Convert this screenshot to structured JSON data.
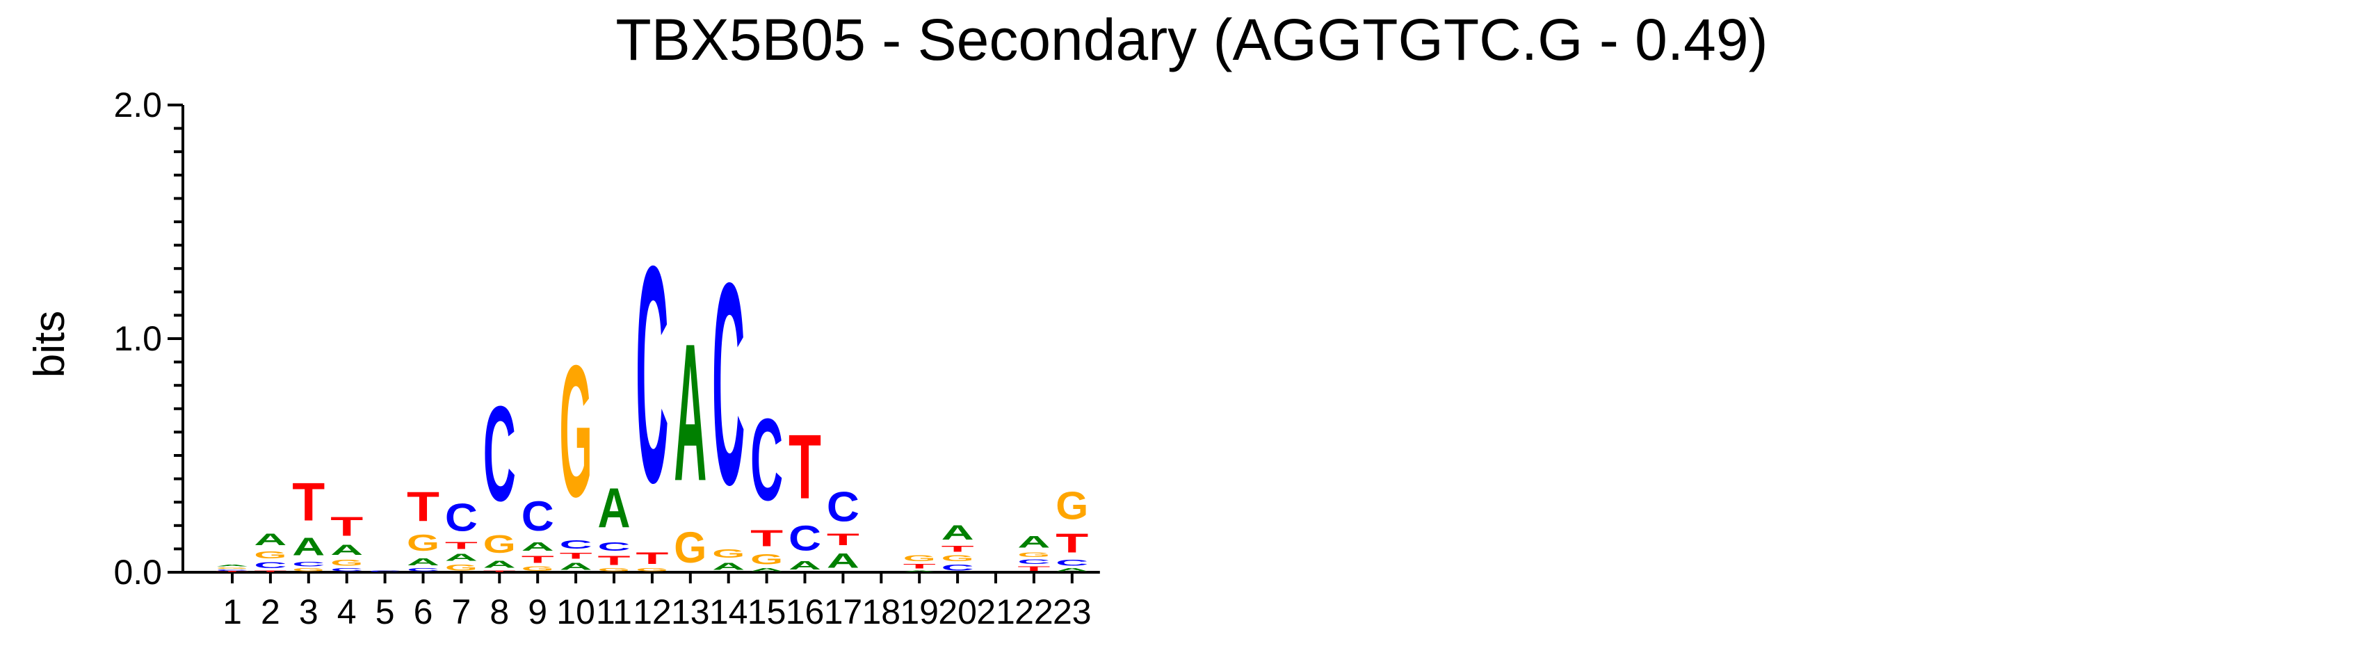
{
  "chart_data": {
    "type": "sequence-logo",
    "title": "TBX5B05 - Secondary (AGGTGTC.G - 0.49)",
    "ylabel": "bits",
    "ylim": [
      0,
      2
    ],
    "yticks": [
      "0.0",
      "1.0",
      "2.0"
    ],
    "positions": [
      "1",
      "2",
      "3",
      "4",
      "5",
      "6",
      "7",
      "8",
      "9",
      "10",
      "11",
      "12",
      "13",
      "14",
      "15",
      "16",
      "17",
      "18",
      "19",
      "20",
      "21",
      "22",
      "23"
    ],
    "colors": {
      "A": "#008000",
      "C": "#0000ff",
      "G": "#ffa500",
      "T": "#ff0000"
    },
    "stacks": [
      [
        [
          "T",
          0.005
        ],
        [
          "C",
          0.008
        ],
        [
          "G",
          0.01
        ],
        [
          "A",
          0.012
        ]
      ],
      [
        [
          "T",
          0.01
        ],
        [
          "C",
          0.04
        ],
        [
          "G",
          0.05
        ],
        [
          "A",
          0.08
        ]
      ],
      [
        [
          "G",
          0.02
        ],
        [
          "C",
          0.03
        ],
        [
          "A",
          0.12
        ],
        [
          "T",
          0.26
        ]
      ],
      [
        [
          "C",
          0.02
        ],
        [
          "G",
          0.04
        ],
        [
          "A",
          0.07
        ],
        [
          "T",
          0.13
        ]
      ],
      [
        [
          "C",
          0.01
        ]
      ],
      [
        [
          "C",
          0.02
        ],
        [
          "A",
          0.05
        ],
        [
          "G",
          0.11
        ],
        [
          "T",
          0.2
        ]
      ],
      [
        [
          "G",
          0.04
        ],
        [
          "A",
          0.05
        ],
        [
          "T",
          0.05
        ],
        [
          "C",
          0.19
        ]
      ],
      [
        [
          "T",
          0.01
        ],
        [
          "A",
          0.05
        ],
        [
          "G",
          0.12
        ],
        [
          "C",
          0.65
        ]
      ],
      [
        [
          "G",
          0.03
        ],
        [
          "T",
          0.05
        ],
        [
          "A",
          0.06
        ],
        [
          "C",
          0.2
        ]
      ],
      [
        [
          "A",
          0.05
        ],
        [
          "T",
          0.04
        ],
        [
          "C",
          0.06
        ],
        [
          "G",
          0.9
        ]
      ],
      [
        [
          "G",
          0.02
        ],
        [
          "T",
          0.06
        ],
        [
          "C",
          0.06
        ],
        [
          "A",
          0.27
        ]
      ],
      [
        [
          "G",
          0.02
        ],
        [
          "T",
          0.08
        ],
        [
          "C",
          1.48
        ]
      ],
      [
        [
          "G",
          0.21
        ],
        [
          "A",
          0.94
        ]
      ],
      [
        [
          "A",
          0.05
        ],
        [
          "G",
          0.06
        ],
        [
          "C",
          1.38
        ]
      ],
      [
        [
          "A",
          0.02
        ],
        [
          "G",
          0.07
        ],
        [
          "T",
          0.11
        ],
        [
          "C",
          0.56
        ]
      ],
      [
        [
          "A",
          0.06
        ],
        [
          "C",
          0.17
        ],
        [
          "T",
          0.44
        ]
      ],
      [
        [
          "A",
          0.1
        ],
        [
          "T",
          0.08
        ],
        [
          "C",
          0.2
        ]
      ],
      [],
      [
        [
          "A",
          0.01
        ],
        [
          "T",
          0.03
        ],
        [
          "G",
          0.04
        ]
      ],
      [
        [
          "C",
          0.04
        ],
        [
          "G",
          0.04
        ],
        [
          "T",
          0.04
        ],
        [
          "A",
          0.1
        ]
      ],
      [],
      [
        [
          "T",
          0.03
        ],
        [
          "C",
          0.03
        ],
        [
          "G",
          0.03
        ],
        [
          "A",
          0.08
        ]
      ],
      [
        [
          "A",
          0.02
        ],
        [
          "C",
          0.04
        ],
        [
          "T",
          0.13
        ],
        [
          "G",
          0.19
        ]
      ]
    ]
  }
}
